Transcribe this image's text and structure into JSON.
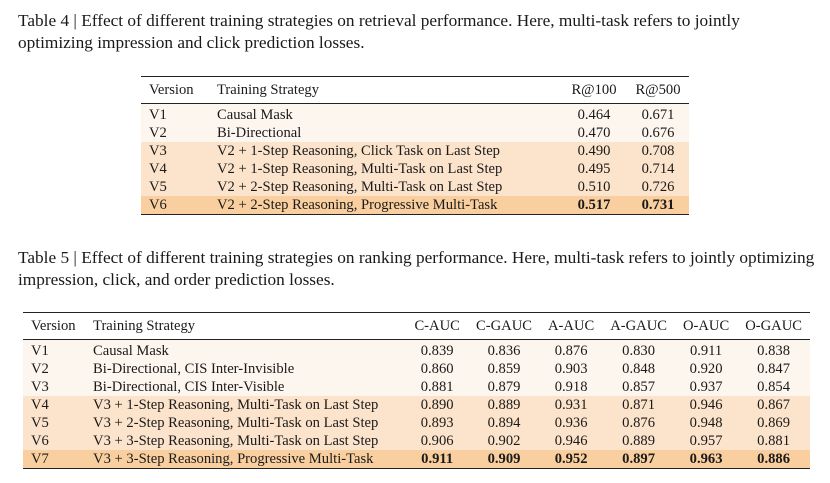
{
  "table4": {
    "caption": "Table 4 | Effect of different training strategies on retrieval performance. Here, multi-task refers to jointly optimizing impression and click prediction losses.",
    "headers": [
      "Version",
      "Training Strategy",
      "R@100",
      "R@500"
    ],
    "rows": [
      {
        "version": "V1",
        "strategy": "Causal Mask",
        "r100": "0.464",
        "r500": "0.671"
      },
      {
        "version": "V2",
        "strategy": "Bi-Directional",
        "r100": "0.470",
        "r500": "0.676"
      },
      {
        "version": "V3",
        "strategy": "V2 + 1-Step Reasoning, Click Task on Last Step",
        "r100": "0.490",
        "r500": "0.708"
      },
      {
        "version": "V4",
        "strategy": "V2 + 1-Step Reasoning, Multi-Task on Last Step",
        "r100": "0.495",
        "r500": "0.714"
      },
      {
        "version": "V5",
        "strategy": "V2 + 2-Step Reasoning, Multi-Task on Last Step",
        "r100": "0.510",
        "r500": "0.726"
      },
      {
        "version": "V6",
        "strategy": "V2 + 2-Step Reasoning, Progressive Multi-Task",
        "r100": "0.517",
        "r500": "0.731"
      }
    ],
    "row_shading": [
      0,
      0,
      1,
      1,
      1,
      2
    ],
    "bold_row": 5
  },
  "table5": {
    "caption": "Table 5 | Effect of different training strategies on ranking performance. Here, multi-task refers to jointly optimizing impression, click, and order prediction losses.",
    "headers": [
      "Version",
      "Training Strategy",
      "C-AUC",
      "C-GAUC",
      "A-AUC",
      "A-GAUC",
      "O-AUC",
      "O-GAUC"
    ],
    "rows": [
      {
        "version": "V1",
        "strategy": "Causal Mask",
        "vals": [
          "0.839",
          "0.836",
          "0.876",
          "0.830",
          "0.911",
          "0.838"
        ]
      },
      {
        "version": "V2",
        "strategy": "Bi-Directional, CIS Inter-Invisible",
        "vals": [
          "0.860",
          "0.859",
          "0.903",
          "0.848",
          "0.920",
          "0.847"
        ]
      },
      {
        "version": "V3",
        "strategy": "Bi-Directional, CIS Inter-Visible",
        "vals": [
          "0.881",
          "0.879",
          "0.918",
          "0.857",
          "0.937",
          "0.854"
        ]
      },
      {
        "version": "V4",
        "strategy": "V3 + 1-Step Reasoning, Multi-Task on Last Step",
        "vals": [
          "0.890",
          "0.889",
          "0.931",
          "0.871",
          "0.946",
          "0.867"
        ]
      },
      {
        "version": "V5",
        "strategy": "V3 + 2-Step Reasoning, Multi-Task on Last Step",
        "vals": [
          "0.893",
          "0.894",
          "0.936",
          "0.876",
          "0.948",
          "0.869"
        ]
      },
      {
        "version": "V6",
        "strategy": "V3 + 3-Step Reasoning, Multi-Task on Last Step",
        "vals": [
          "0.906",
          "0.902",
          "0.946",
          "0.889",
          "0.957",
          "0.881"
        ]
      },
      {
        "version": "V7",
        "strategy": "V3 + 3-Step Reasoning, Progressive Multi-Task",
        "vals": [
          "0.911",
          "0.909",
          "0.952",
          "0.897",
          "0.963",
          "0.886"
        ]
      }
    ],
    "row_shading": [
      0,
      0,
      0,
      1,
      1,
      1,
      2
    ],
    "bold_row": 6
  }
}
